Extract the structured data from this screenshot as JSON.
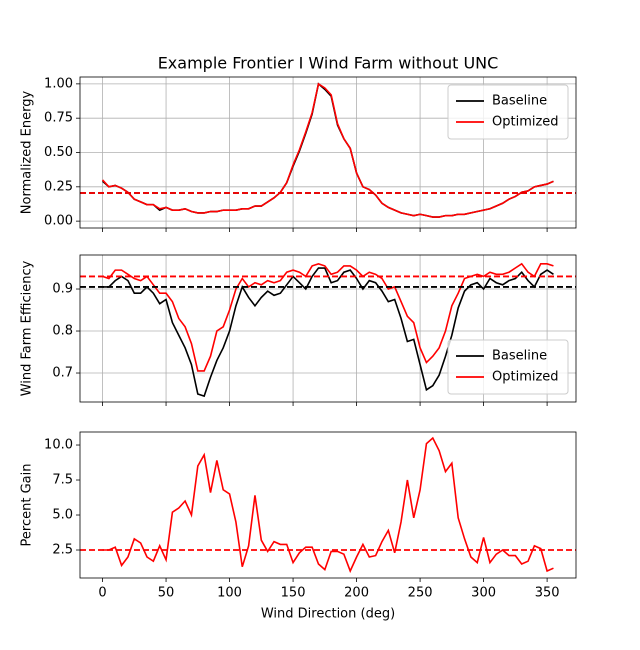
{
  "chart_data": [
    {
      "type": "line",
      "title": "Example Frontier I Wind Farm without UNC",
      "ylabel": "Normalized Energy",
      "x": [
        0,
        5,
        10,
        15,
        20,
        25,
        30,
        35,
        40,
        45,
        50,
        55,
        60,
        65,
        70,
        75,
        80,
        85,
        90,
        95,
        100,
        105,
        110,
        115,
        120,
        125,
        130,
        135,
        140,
        145,
        150,
        155,
        160,
        165,
        170,
        175,
        180,
        185,
        190,
        195,
        200,
        205,
        210,
        215,
        220,
        225,
        230,
        235,
        240,
        245,
        250,
        255,
        260,
        265,
        270,
        275,
        280,
        285,
        290,
        295,
        300,
        305,
        310,
        315,
        320,
        325,
        330,
        335,
        340,
        345,
        350,
        355
      ],
      "series": [
        {
          "name": "Baseline",
          "color": "#000000",
          "values": [
            0.29,
            0.25,
            0.26,
            0.24,
            0.21,
            0.16,
            0.14,
            0.12,
            0.12,
            0.08,
            0.1,
            0.08,
            0.08,
            0.09,
            0.07,
            0.06,
            0.06,
            0.07,
            0.07,
            0.08,
            0.08,
            0.08,
            0.09,
            0.09,
            0.11,
            0.11,
            0.14,
            0.17,
            0.21,
            0.28,
            0.4,
            0.51,
            0.64,
            0.78,
            1.0,
            0.96,
            0.91,
            0.7,
            0.6,
            0.53,
            0.35,
            0.25,
            0.23,
            0.19,
            0.13,
            0.1,
            0.08,
            0.06,
            0.05,
            0.04,
            0.05,
            0.04,
            0.03,
            0.03,
            0.04,
            0.04,
            0.05,
            0.05,
            0.06,
            0.07,
            0.08,
            0.09,
            0.11,
            0.13,
            0.16,
            0.18,
            0.21,
            0.22,
            0.25,
            0.26,
            0.27,
            0.29
          ]
        },
        {
          "name": "Optimized",
          "color": "#ff0000",
          "values": [
            0.3,
            0.25,
            0.26,
            0.24,
            0.21,
            0.16,
            0.14,
            0.12,
            0.12,
            0.09,
            0.1,
            0.08,
            0.08,
            0.09,
            0.07,
            0.06,
            0.06,
            0.07,
            0.07,
            0.08,
            0.08,
            0.08,
            0.09,
            0.09,
            0.11,
            0.11,
            0.14,
            0.17,
            0.21,
            0.28,
            0.41,
            0.52,
            0.65,
            0.79,
            1.0,
            0.97,
            0.92,
            0.71,
            0.6,
            0.53,
            0.35,
            0.25,
            0.23,
            0.19,
            0.13,
            0.1,
            0.08,
            0.06,
            0.05,
            0.04,
            0.05,
            0.04,
            0.03,
            0.03,
            0.04,
            0.04,
            0.05,
            0.05,
            0.06,
            0.07,
            0.08,
            0.09,
            0.11,
            0.13,
            0.16,
            0.18,
            0.21,
            0.22,
            0.25,
            0.26,
            0.27,
            0.29
          ]
        }
      ],
      "hlines": [
        {
          "value": 0.205,
          "color": "#000000"
        },
        {
          "value": 0.205,
          "color": "#ff0000"
        }
      ],
      "xlim": [
        -17.75,
        372.75
      ],
      "xticks": [
        0,
        50,
        100,
        150,
        200,
        250,
        300,
        350
      ],
      "ylim": [
        -0.05,
        1.05
      ],
      "yticks": [
        {
          "value": 0,
          "label": "0.00"
        },
        {
          "value": 0.25,
          "label": "0.25"
        },
        {
          "value": 0.5,
          "label": "0.50"
        },
        {
          "value": 0.75,
          "label": "0.75"
        },
        {
          "value": 1,
          "label": "1.00"
        }
      ],
      "grid": true,
      "legend": "upper right"
    },
    {
      "type": "line",
      "ylabel": "Wind Farm Efficiency",
      "x": [
        0,
        5,
        10,
        15,
        20,
        25,
        30,
        35,
        40,
        45,
        50,
        55,
        60,
        65,
        70,
        75,
        80,
        85,
        90,
        95,
        100,
        105,
        110,
        115,
        120,
        125,
        130,
        135,
        140,
        145,
        150,
        155,
        160,
        165,
        170,
        175,
        180,
        185,
        190,
        195,
        200,
        205,
        210,
        215,
        220,
        225,
        230,
        235,
        240,
        245,
        250,
        255,
        260,
        265,
        270,
        275,
        280,
        285,
        290,
        295,
        300,
        305,
        310,
        315,
        320,
        325,
        330,
        335,
        340,
        345,
        350,
        355
      ],
      "series": [
        {
          "name": "Baseline",
          "color": "#000000",
          "values": [
            0.905,
            0.905,
            0.92,
            0.93,
            0.92,
            0.89,
            0.89,
            0.905,
            0.89,
            0.865,
            0.875,
            0.82,
            0.79,
            0.76,
            0.72,
            0.65,
            0.645,
            0.69,
            0.73,
            0.76,
            0.8,
            0.86,
            0.905,
            0.88,
            0.86,
            0.88,
            0.895,
            0.885,
            0.89,
            0.91,
            0.93,
            0.915,
            0.9,
            0.93,
            0.95,
            0.95,
            0.915,
            0.92,
            0.94,
            0.945,
            0.925,
            0.9,
            0.92,
            0.915,
            0.895,
            0.87,
            0.875,
            0.83,
            0.775,
            0.78,
            0.72,
            0.66,
            0.67,
            0.695,
            0.74,
            0.79,
            0.855,
            0.895,
            0.91,
            0.915,
            0.9,
            0.925,
            0.915,
            0.91,
            0.92,
            0.925,
            0.94,
            0.92,
            0.905,
            0.935,
            0.945,
            0.935
          ]
        },
        {
          "name": "Optimized",
          "color": "#ff0000",
          "values": [
            0.93,
            0.925,
            0.945,
            0.945,
            0.935,
            0.925,
            0.92,
            0.93,
            0.91,
            0.89,
            0.89,
            0.87,
            0.83,
            0.81,
            0.77,
            0.705,
            0.705,
            0.74,
            0.8,
            0.81,
            0.85,
            0.9,
            0.925,
            0.905,
            0.915,
            0.91,
            0.92,
            0.915,
            0.92,
            0.94,
            0.945,
            0.94,
            0.93,
            0.955,
            0.96,
            0.955,
            0.935,
            0.94,
            0.955,
            0.955,
            0.945,
            0.93,
            0.94,
            0.935,
            0.925,
            0.9,
            0.905,
            0.87,
            0.835,
            0.82,
            0.76,
            0.725,
            0.74,
            0.76,
            0.8,
            0.86,
            0.89,
            0.925,
            0.93,
            0.935,
            0.93,
            0.94,
            0.935,
            0.935,
            0.94,
            0.95,
            0.96,
            0.94,
            0.93,
            0.96,
            0.96,
            0.955
          ]
        }
      ],
      "hlines": [
        {
          "value": 0.905,
          "color": "#000000"
        },
        {
          "value": 0.93,
          "color": "#ff0000"
        }
      ],
      "xlim": [
        -17.75,
        372.75
      ],
      "xticks": [
        0,
        50,
        100,
        150,
        200,
        250,
        300,
        350
      ],
      "ylim": [
        0.631,
        0.981
      ],
      "yticks": [
        0.7,
        0.8,
        0.9
      ],
      "grid": true,
      "legend": "lower right"
    },
    {
      "type": "line",
      "ylabel": "Percent Gain",
      "xlabel": "Wind Direction (deg)",
      "x": [
        0,
        5,
        10,
        15,
        20,
        25,
        30,
        35,
        40,
        45,
        50,
        55,
        60,
        65,
        70,
        75,
        80,
        85,
        90,
        95,
        100,
        105,
        110,
        115,
        120,
        125,
        130,
        135,
        140,
        145,
        150,
        155,
        160,
        165,
        170,
        175,
        180,
        185,
        190,
        195,
        200,
        205,
        210,
        215,
        220,
        225,
        230,
        235,
        240,
        245,
        250,
        255,
        260,
        265,
        270,
        275,
        280,
        285,
        290,
        295,
        300,
        305,
        310,
        315,
        320,
        325,
        330,
        335,
        340,
        345,
        350,
        355
      ],
      "series": [
        {
          "color": "#ff0000",
          "values": [
            2.5,
            2.5,
            2.7,
            1.4,
            2.0,
            3.3,
            3.0,
            2.0,
            1.7,
            2.8,
            1.8,
            5.2,
            5.5,
            6.0,
            5.0,
            8.5,
            9.3,
            6.6,
            8.9,
            6.8,
            6.5,
            4.5,
            1.3,
            2.8,
            6.4,
            3.2,
            2.4,
            3.1,
            2.9,
            2.9,
            1.6,
            2.3,
            2.7,
            2.7,
            1.5,
            1.1,
            2.4,
            2.4,
            2.2,
            1.0,
            2.0,
            2.9,
            2.0,
            2.1,
            3.1,
            3.9,
            2.3,
            4.5,
            7.5,
            4.8,
            6.8,
            10.1,
            10.5,
            9.6,
            8.1,
            8.7,
            4.8,
            3.3,
            2.0,
            1.6,
            3.4,
            1.6,
            2.2,
            2.5,
            2.1,
            2.1,
            1.5,
            1.7,
            2.8,
            2.6,
            1.0,
            1.2
          ]
        }
      ],
      "hlines": [
        {
          "value": 2.5,
          "color": "#ff0000"
        }
      ],
      "xlim": [
        -17.75,
        372.75
      ],
      "xticks": [
        0,
        50,
        100,
        150,
        200,
        250,
        300,
        350
      ],
      "ylim": [
        0.5,
        10.93
      ],
      "yticks": [
        2.5,
        {
          "value": 5,
          "label": "5.0"
        },
        7.5,
        {
          "value": 10,
          "label": "10.0"
        }
      ],
      "grid": false
    }
  ]
}
